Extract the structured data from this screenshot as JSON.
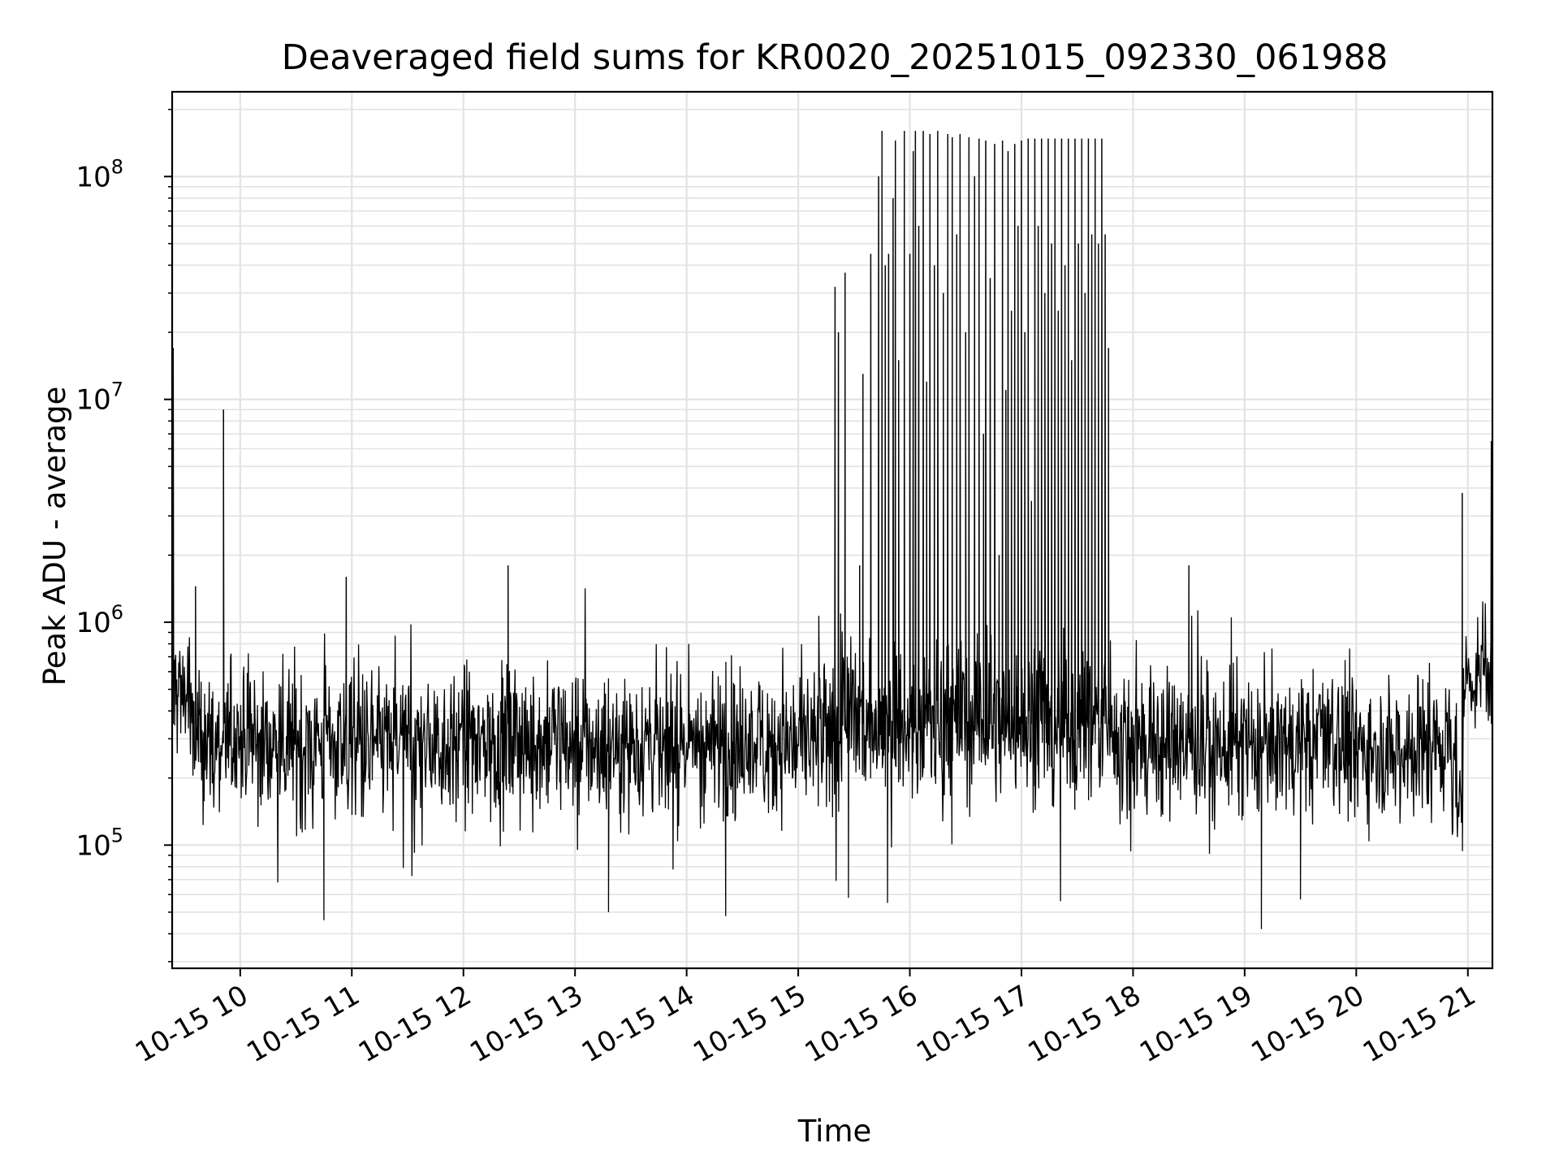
{
  "chart_data": {
    "type": "line",
    "title": "Deaveraged field sums for KR0020_20251015_092330_061988",
    "xlabel": "Time",
    "ylabel": "Peak ADU - average",
    "yscale": "log",
    "ylim": [
      28000,
      240000000
    ],
    "xlim_hours": [
      9.39,
      21.22
    ],
    "grid": true,
    "x_tick_hours": [
      10,
      11,
      12,
      13,
      14,
      15,
      16,
      17,
      18,
      19,
      20,
      21
    ],
    "x_tick_labels": [
      "10-15 10",
      "10-15 11",
      "10-15 12",
      "10-15 13",
      "10-15 14",
      "10-15 15",
      "10-15 16",
      "10-15 17",
      "10-15 18",
      "10-15 19",
      "10-15 20",
      "10-15 21"
    ],
    "y_ticks": [
      {
        "value": 100000,
        "base": "10",
        "exp": "5"
      },
      {
        "value": 1000000,
        "base": "10",
        "exp": "6"
      },
      {
        "value": 10000000,
        "base": "10",
        "exp": "7"
      },
      {
        "value": 100000000,
        "base": "10",
        "exp": "8"
      }
    ],
    "series": [
      {
        "name": "Peak ADU - average",
        "color": "#000000",
        "baseline_segments": [
          {
            "t0": 9.39,
            "t1": 9.55,
            "median": 500000,
            "spread_dex": 0.35
          },
          {
            "t0": 9.55,
            "t1": 15.3,
            "median": 290000,
            "spread_dex": 0.32
          },
          {
            "t0": 15.3,
            "t1": 17.8,
            "median": 360000,
            "spread_dex": 0.34
          },
          {
            "t0": 17.8,
            "t1": 20.9,
            "median": 280000,
            "spread_dex": 0.32
          },
          {
            "t0": 20.9,
            "t1": 20.96,
            "median": 150000,
            "spread_dex": 0.2
          },
          {
            "t0": 20.96,
            "t1": 21.22,
            "median": 550000,
            "spread_dex": 0.2
          }
        ],
        "spikes": [
          {
            "t": 9.4,
            "v": 17000000
          },
          {
            "t": 9.85,
            "v": 9000000
          },
          {
            "t": 9.6,
            "v": 1450000
          },
          {
            "t": 10.95,
            "v": 1600000
          },
          {
            "t": 12.4,
            "v": 1800000
          },
          {
            "t": 15.33,
            "v": 32000000
          },
          {
            "t": 15.36,
            "v": 20000000
          },
          {
            "t": 15.42,
            "v": 37000000
          },
          {
            "t": 15.55,
            "v": 1800000
          },
          {
            "t": 15.58,
            "v": 13000000
          },
          {
            "t": 15.65,
            "v": 45000000
          },
          {
            "t": 15.72,
            "v": 100000000
          },
          {
            "t": 15.75,
            "v": 160000000
          },
          {
            "t": 15.78,
            "v": 40000000
          },
          {
            "t": 15.81,
            "v": 45000000
          },
          {
            "t": 15.85,
            "v": 80000000
          },
          {
            "t": 15.87,
            "v": 145000000
          },
          {
            "t": 15.9,
            "v": 15000000
          },
          {
            "t": 15.95,
            "v": 160000000
          },
          {
            "t": 16.0,
            "v": 45000000
          },
          {
            "t": 16.03,
            "v": 130000000
          },
          {
            "t": 16.05,
            "v": 160000000
          },
          {
            "t": 16.08,
            "v": 60000000
          },
          {
            "t": 16.12,
            "v": 160000000
          },
          {
            "t": 16.15,
            "v": 12000000
          },
          {
            "t": 16.18,
            "v": 155000000
          },
          {
            "t": 16.22,
            "v": 40000000
          },
          {
            "t": 16.25,
            "v": 160000000
          },
          {
            "t": 16.3,
            "v": 30000000
          },
          {
            "t": 16.34,
            "v": 155000000
          },
          {
            "t": 16.38,
            "v": 150000000
          },
          {
            "t": 16.42,
            "v": 55000000
          },
          {
            "t": 16.45,
            "v": 155000000
          },
          {
            "t": 16.5,
            "v": 20000000
          },
          {
            "t": 16.53,
            "v": 150000000
          },
          {
            "t": 16.58,
            "v": 100000000
          },
          {
            "t": 16.62,
            "v": 148000000
          },
          {
            "t": 16.66,
            "v": 7000000
          },
          {
            "t": 16.68,
            "v": 145000000
          },
          {
            "t": 16.72,
            "v": 35000000
          },
          {
            "t": 16.76,
            "v": 140000000
          },
          {
            "t": 16.8,
            "v": 2000000
          },
          {
            "t": 16.83,
            "v": 145000000
          },
          {
            "t": 16.86,
            "v": 11000000
          },
          {
            "t": 16.88,
            "v": 130000000
          },
          {
            "t": 16.91,
            "v": 25000000
          },
          {
            "t": 16.94,
            "v": 140000000
          },
          {
            "t": 16.97,
            "v": 60000000
          },
          {
            "t": 17.0,
            "v": 145000000
          },
          {
            "t": 17.03,
            "v": 20000000
          },
          {
            "t": 17.06,
            "v": 148000000
          },
          {
            "t": 17.09,
            "v": 3500000
          },
          {
            "t": 17.12,
            "v": 148000000
          },
          {
            "t": 17.15,
            "v": 60000000
          },
          {
            "t": 17.18,
            "v": 148000000
          },
          {
            "t": 17.21,
            "v": 30000000
          },
          {
            "t": 17.24,
            "v": 148000000
          },
          {
            "t": 17.27,
            "v": 50000000
          },
          {
            "t": 17.3,
            "v": 148000000
          },
          {
            "t": 17.33,
            "v": 25000000
          },
          {
            "t": 17.36,
            "v": 148000000
          },
          {
            "t": 17.39,
            "v": 40000000
          },
          {
            "t": 17.42,
            "v": 148000000
          },
          {
            "t": 17.45,
            "v": 15000000
          },
          {
            "t": 17.48,
            "v": 148000000
          },
          {
            "t": 17.51,
            "v": 50000000
          },
          {
            "t": 17.54,
            "v": 148000000
          },
          {
            "t": 17.57,
            "v": 30000000
          },
          {
            "t": 17.6,
            "v": 148000000
          },
          {
            "t": 17.63,
            "v": 55000000
          },
          {
            "t": 17.66,
            "v": 148000000
          },
          {
            "t": 17.69,
            "v": 50000000
          },
          {
            "t": 17.72,
            "v": 148000000
          },
          {
            "t": 17.75,
            "v": 55000000
          },
          {
            "t": 17.78,
            "v": 17000000
          },
          {
            "t": 18.5,
            "v": 1800000
          },
          {
            "t": 20.95,
            "v": 3800000
          },
          {
            "t": 21.21,
            "v": 6500000
          }
        ],
        "dips": [
          {
            "t": 10.75,
            "v": 46000.0
          },
          {
            "t": 15.45,
            "v": 58000
          },
          {
            "t": 15.8,
            "v": 55000
          },
          {
            "t": 17.35,
            "v": 56000
          },
          {
            "t": 19.15,
            "v": 42000
          },
          {
            "t": 14.35,
            "v": 48000
          },
          {
            "t": 13.3,
            "v": 50000
          },
          {
            "t": 19.5,
            "v": 57000
          }
        ]
      }
    ]
  }
}
